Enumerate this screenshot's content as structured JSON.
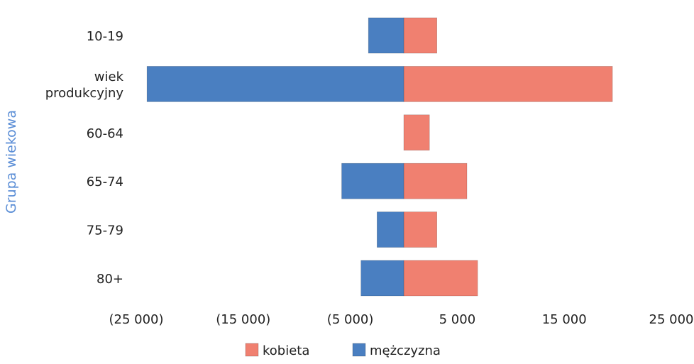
{
  "chart_data": {
    "type": "bar",
    "orientation": "horizontal",
    "stacked": true,
    "ylabel": "Grupa wiekowa",
    "xlabel": "",
    "title": "",
    "categories": [
      "10-19",
      "wiek produkcyjny",
      "60-64",
      "65-74",
      "75-79",
      "80+"
    ],
    "category_lines": [
      [
        "10-19"
      ],
      [
        "wiek",
        "produkcyjny"
      ],
      [
        "60-64"
      ],
      [
        "65-74"
      ],
      [
        "75-79"
      ],
      [
        "80+"
      ]
    ],
    "series": [
      {
        "name": "kobieta",
        "color": "#f08070",
        "values": [
          3100,
          19500,
          2400,
          5900,
          3100,
          6900
        ]
      },
      {
        "name": "mężczyzna",
        "color": "#4a7fc1",
        "values": [
          -3300,
          -24000,
          0,
          -5800,
          -2500,
          -4000
        ]
      }
    ],
    "xlim": [
      -25000,
      25000
    ],
    "xticks": [
      -25000,
      -15000,
      -5000,
      5000,
      15000,
      25000
    ],
    "xtick_labels": [
      "(25 000)",
      "(15 000)",
      "(5 000)",
      "5 000",
      "15 000",
      "25 000"
    ],
    "grid": false,
    "legend_position": "bottom",
    "legend": [
      {
        "label": "kobieta",
        "color": "#f08070"
      },
      {
        "label": "mężczyzna",
        "color": "#4a7fc1"
      }
    ]
  }
}
